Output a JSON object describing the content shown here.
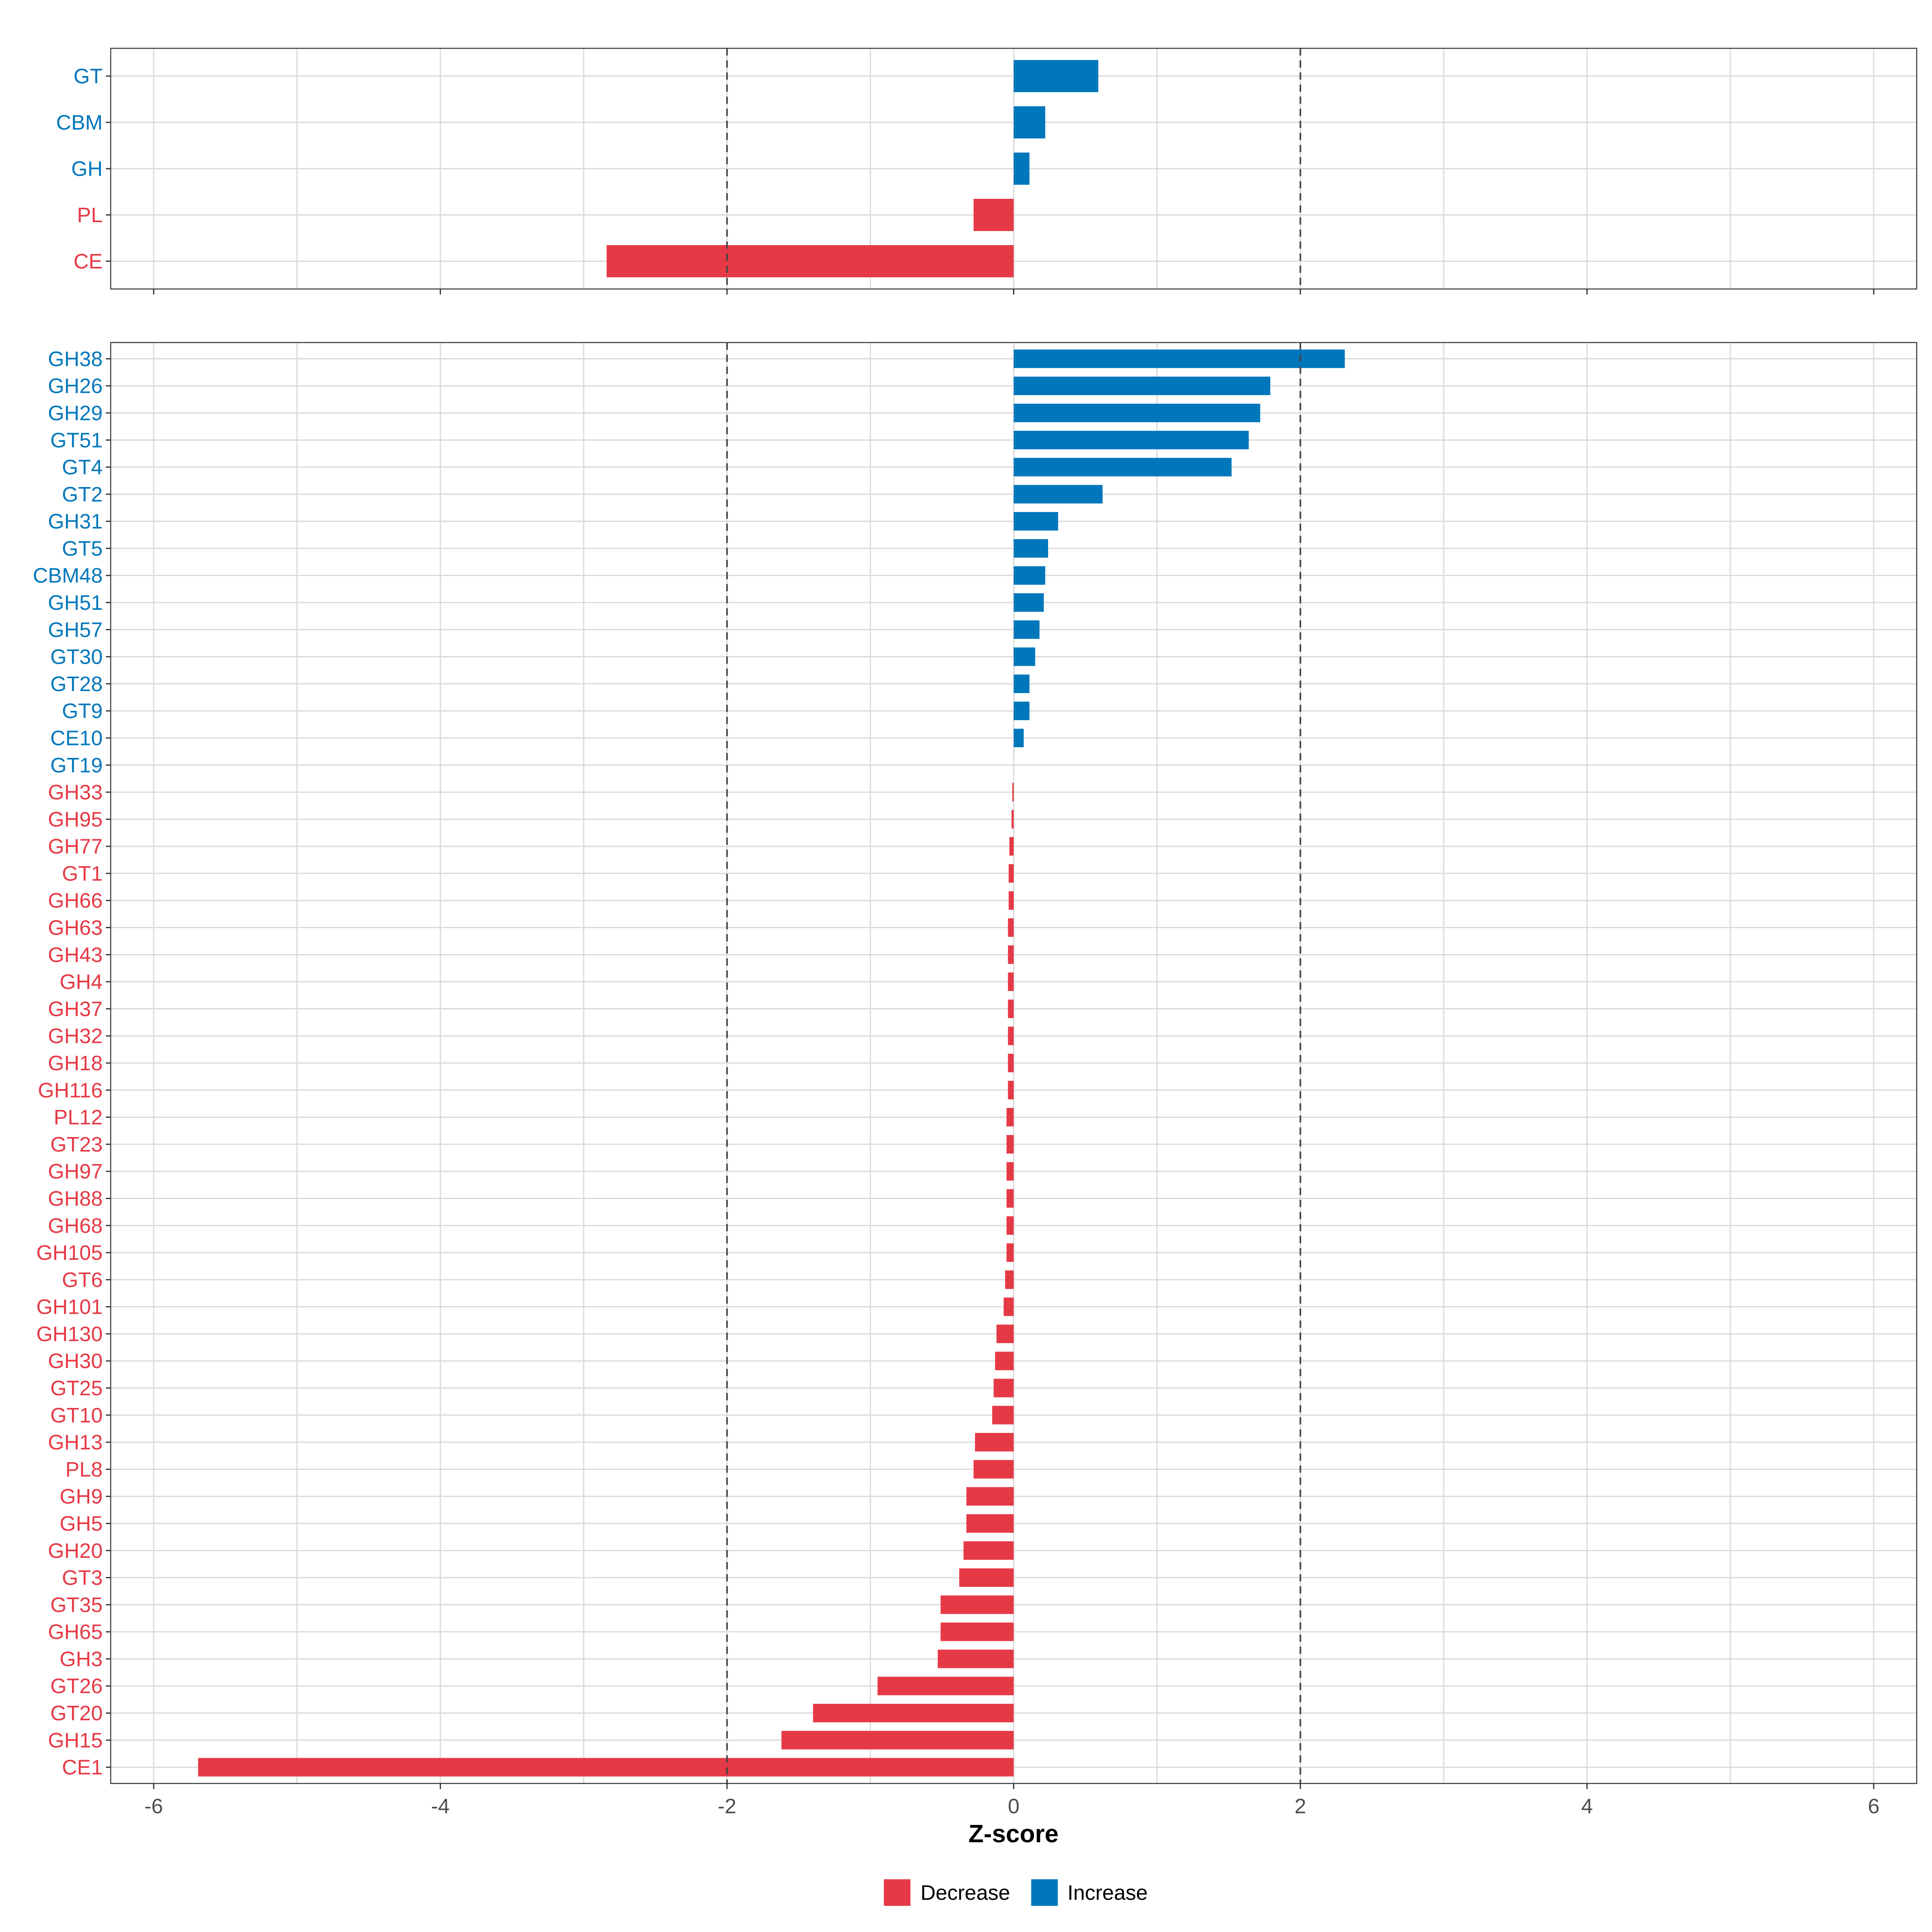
{
  "colors": {
    "decrease": "#E63946",
    "increase": "#0077BB"
  },
  "chart_data": [
    {
      "type": "bar",
      "orientation": "horizontal",
      "panel": "top",
      "categories": [
        "GT",
        "CBM",
        "GH",
        "PL",
        "CE"
      ],
      "values": [
        0.59,
        0.22,
        0.11,
        -0.28,
        -2.84
      ],
      "xlim": [
        -6.3,
        6.3
      ],
      "xticks": [
        -6,
        -4,
        -2,
        0,
        2,
        4,
        6
      ],
      "reference_lines": [
        -2,
        2
      ],
      "grid": true
    },
    {
      "type": "bar",
      "orientation": "horizontal",
      "panel": "bottom",
      "categories": [
        "GH38",
        "GH26",
        "GH29",
        "GT51",
        "GT4",
        "GT2",
        "GH31",
        "GT5",
        "CBM48",
        "GH51",
        "GH57",
        "GT30",
        "GT28",
        "GT9",
        "CE10",
        "GT19",
        "GH33",
        "GH95",
        "GH77",
        "GT1",
        "GH66",
        "GH63",
        "GH43",
        "GH4",
        "GH37",
        "GH32",
        "GH18",
        "GH116",
        "PL12",
        "GT23",
        "GH97",
        "GH88",
        "GH68",
        "GH105",
        "GT6",
        "GH101",
        "GH130",
        "GH30",
        "GT25",
        "GT10",
        "GH13",
        "PL8",
        "GH9",
        "GH5",
        "GH20",
        "GT3",
        "GT35",
        "GH65",
        "GH3",
        "GT26",
        "GT20",
        "GH15",
        "CE1"
      ],
      "values": [
        2.31,
        1.79,
        1.72,
        1.64,
        1.52,
        0.62,
        0.31,
        0.24,
        0.22,
        0.21,
        0.18,
        0.15,
        0.11,
        0.11,
        0.07,
        0.0,
        -0.01,
        -0.015,
        -0.03,
        -0.035,
        -0.035,
        -0.04,
        -0.04,
        -0.04,
        -0.04,
        -0.04,
        -0.04,
        -0.04,
        -0.05,
        -0.05,
        -0.05,
        -0.05,
        -0.05,
        -0.05,
        -0.06,
        -0.07,
        -0.12,
        -0.13,
        -0.14,
        -0.15,
        -0.27,
        -0.28,
        -0.33,
        -0.33,
        -0.35,
        -0.38,
        -0.51,
        -0.51,
        -0.53,
        -0.95,
        -1.4,
        -1.62,
        -5.69
      ],
      "xlim": [
        -6.3,
        6.3
      ],
      "xticks": [
        -6,
        -4,
        -2,
        0,
        2,
        4,
        6
      ],
      "reference_lines": [
        -2,
        2
      ],
      "grid": true,
      "xlabel": "Z-score"
    }
  ],
  "legend": {
    "position": "bottom",
    "entries": [
      {
        "label": "Decrease",
        "color_key": "decrease"
      },
      {
        "label": "Increase",
        "color_key": "increase"
      }
    ]
  }
}
